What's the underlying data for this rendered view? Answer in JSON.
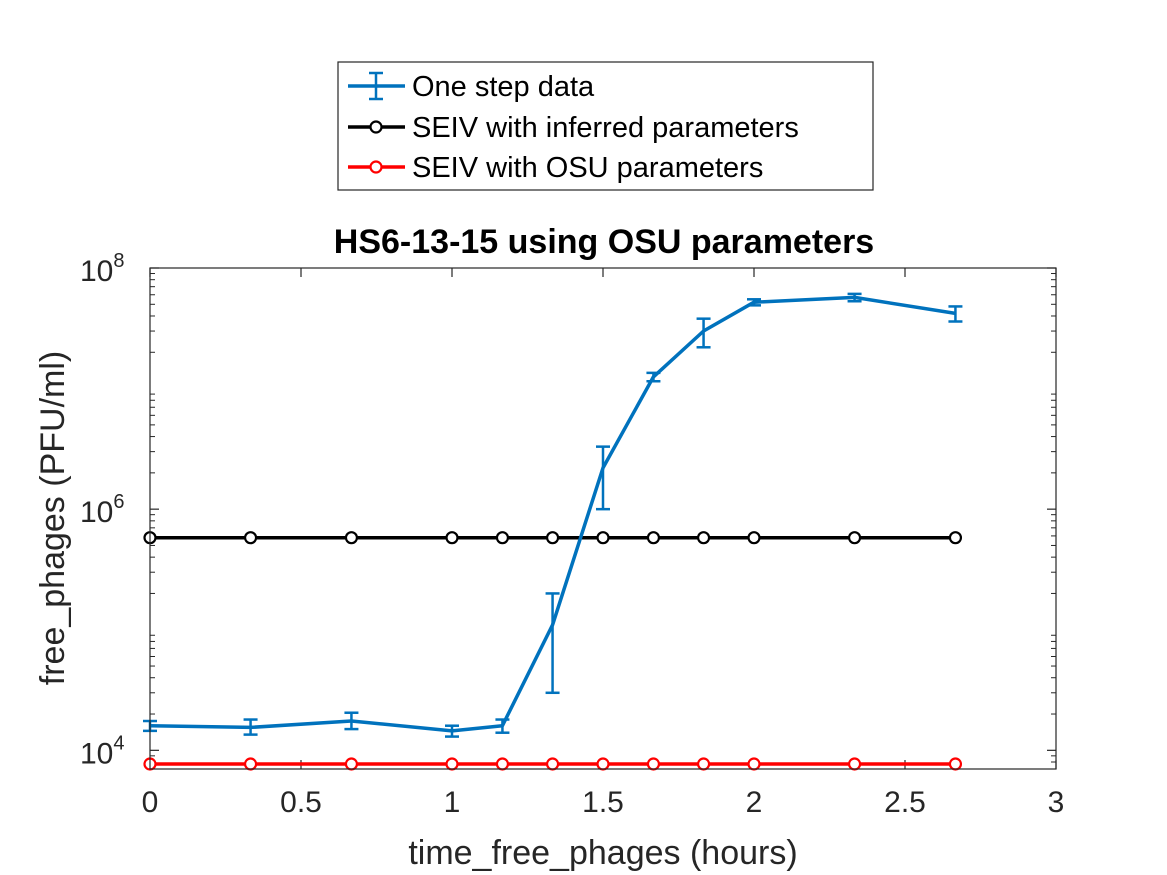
{
  "chart_data": {
    "type": "line",
    "title": "HS6-13-15 using OSU parameters",
    "xlabel": "time_free_phages (hours)",
    "ylabel": "free_phages (PFU/ml)",
    "xlim": [
      0,
      3
    ],
    "ylim": [
      7000,
      100000000
    ],
    "yscale": "log",
    "grid": false,
    "legend_position": "top (outside, above plot)",
    "x_ticks": [
      "0",
      "0.5",
      "1",
      "1.5",
      "2",
      "2.5",
      "3"
    ],
    "y_ticks": [
      {
        "base": "10",
        "exp": "4",
        "value": 10000
      },
      {
        "base": "10",
        "exp": "6",
        "value": 1000000
      },
      {
        "base": "10",
        "exp": "8",
        "value": 100000000
      }
    ],
    "series": [
      {
        "name": "One step data",
        "color": "#0072BD",
        "marker": "errorbar",
        "x": [
          0,
          0.333,
          0.667,
          1,
          1.167,
          1.333,
          1.5,
          1.667,
          1.833,
          2,
          2.333,
          2.667
        ],
        "y": [
          16000,
          15500,
          17500,
          14500,
          16000,
          110000,
          2200000,
          12500000,
          30000000,
          52000000,
          57000000,
          42000000
        ],
        "y_low": [
          14500,
          13500,
          15000,
          13000,
          14000,
          30000,
          1000000,
          11500000,
          22000000,
          49000000,
          53000000,
          36000000
        ],
        "y_high": [
          17500,
          18000,
          20500,
          16000,
          18000,
          200000,
          3300000,
          13500000,
          38000000,
          55000000,
          61000000,
          48000000
        ]
      },
      {
        "name": "SEIV with inferred parameters",
        "color": "#000000",
        "marker": "circle",
        "x": [
          0,
          0.333,
          0.667,
          1,
          1.167,
          1.333,
          1.5,
          1.667,
          1.833,
          2,
          2.333,
          2.667
        ],
        "y": [
          580000,
          580000,
          580000,
          580000,
          580000,
          580000,
          580000,
          580000,
          580000,
          580000,
          580000,
          580000
        ]
      },
      {
        "name": "SEIV with OSU parameters",
        "color": "#FF0000",
        "marker": "circle",
        "x": [
          0,
          0.333,
          0.667,
          1,
          1.167,
          1.333,
          1.5,
          1.667,
          1.833,
          2,
          2.333,
          2.667
        ],
        "y": [
          7700,
          7700,
          7700,
          7700,
          7700,
          7700,
          7700,
          7700,
          7700,
          7700,
          7700,
          7700
        ]
      }
    ]
  }
}
